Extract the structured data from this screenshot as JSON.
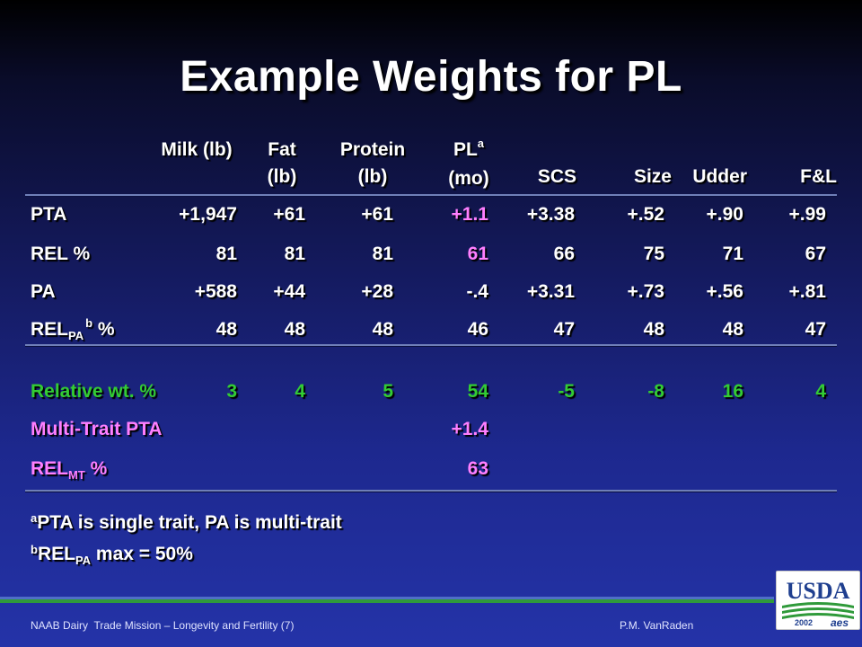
{
  "title": "Example Weights for PL",
  "headers": {
    "milk": [
      "",
      "Milk (lb)"
    ],
    "fat": [
      "Fat",
      "(lb)"
    ],
    "protein": [
      "Protein",
      "(lb)"
    ],
    "pl": [
      "PL",
      "(mo)"
    ],
    "pl_sup": "a",
    "scs": "SCS",
    "size": "Size",
    "udder": "Udder",
    "fl": "F&L"
  },
  "rows": [
    {
      "label": "PTA",
      "values": [
        "+1,947",
        "+61",
        "+61",
        "+1.1",
        "+3.38",
        "+.52",
        "+.90",
        "+.99"
      ]
    },
    {
      "label": "REL %",
      "values": [
        "81",
        "81",
        "81",
        "61",
        "66",
        "75",
        "71",
        "67"
      ]
    },
    {
      "label": "PA",
      "values": [
        "+588",
        "+44",
        "+28",
        "-.4",
        "+3.31",
        "+.73",
        "+.56",
        "+.81"
      ]
    },
    {
      "label_main": "REL",
      "label_sub": "PA",
      "label_sup": "b",
      "label_end": " %",
      "values": [
        "48",
        "48",
        "48",
        "46",
        "47",
        "48",
        "48",
        "47"
      ]
    }
  ],
  "relative": {
    "label": "Relative wt. %",
    "values": [
      "3",
      "4",
      "5",
      "54",
      "-5",
      "-8",
      "16",
      "4"
    ]
  },
  "multitrait": {
    "label": "Multi-Trait PTA",
    "value": "+1.4"
  },
  "relmt": {
    "label_main": "REL",
    "label_sub": "MT",
    "label_end": " %",
    "value": "63"
  },
  "notes": {
    "a_sup": "a",
    "a_text": "PTA is single trait, PA is multi-trait",
    "b_sup": "b",
    "b_main": "REL",
    "b_sub": "PA",
    "b_end": " max = 50%"
  },
  "footer": {
    "left": "NAAB Dairy  Trade Mission – Longevity and Fertility (7)",
    "right": "P.M. VanRaden"
  },
  "logo": {
    "text": "USDA",
    "year": "2002",
    "mark": "aes"
  },
  "colors": {
    "relative_row": "#33cc33",
    "pl_column": "#ff7fff",
    "logo_blue": "#1f3f8f",
    "logo_green": "#2f9a3a"
  }
}
